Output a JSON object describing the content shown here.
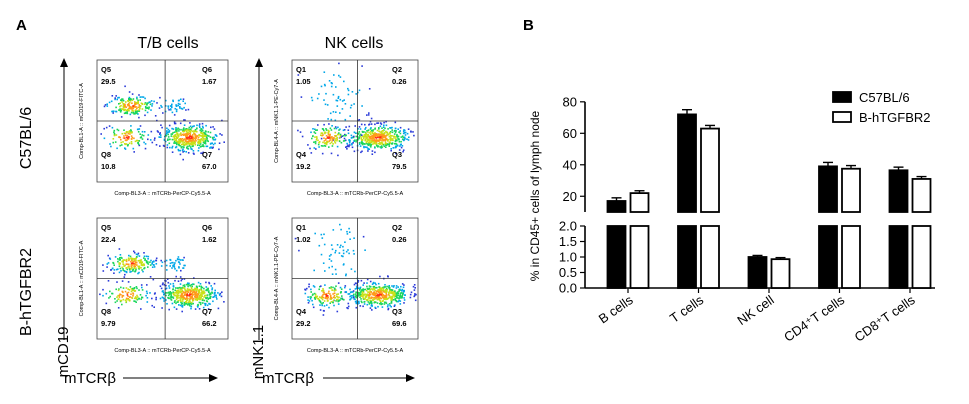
{
  "panel_a": {
    "letter": "A",
    "col_titles": [
      "T/B cells",
      "NK cells"
    ],
    "row_labels": [
      "C57BL/6",
      "B-hTGFBR2"
    ],
    "y_markers": [
      "mCD19",
      "mNK1.1"
    ],
    "x_marker": "mTCRβ",
    "xaxis_label": "Comp-BL3-A :: mTCRb-PerCP-Cy5.5-A",
    "yaxis_labels": [
      "Comp-BL1-A :: mCD19-FITC-A",
      "Comp-BL4-A :: mNK1.1-PE-Cy7-A"
    ],
    "plots": [
      {
        "quadrants": [
          {
            "name": "Q5",
            "value": "29.5"
          },
          {
            "name": "Q6",
            "value": "1.67"
          },
          {
            "name": "Q8",
            "value": "10.8"
          },
          {
            "name": "Q7",
            "value": "67.0"
          }
        ]
      },
      {
        "quadrants": [
          {
            "name": "Q1",
            "value": "1.05"
          },
          {
            "name": "Q2",
            "value": "0.26"
          },
          {
            "name": "Q4",
            "value": "19.2"
          },
          {
            "name": "Q3",
            "value": "79.5"
          }
        ]
      },
      {
        "quadrants": [
          {
            "name": "Q5",
            "value": "22.4"
          },
          {
            "name": "Q6",
            "value": "1.62"
          },
          {
            "name": "Q8",
            "value": "9.79"
          },
          {
            "name": "Q7",
            "value": "66.2"
          }
        ]
      },
      {
        "quadrants": [
          {
            "name": "Q1",
            "value": "1.02"
          },
          {
            "name": "Q2",
            "value": "0.26"
          },
          {
            "name": "Q4",
            "value": "29.2"
          },
          {
            "name": "Q3",
            "value": "69.6"
          }
        ]
      }
    ]
  },
  "chart_data": {
    "type": "bar",
    "panel_label": "B",
    "categories": [
      "B cells",
      "T cells",
      "NK cell",
      "CD4⁺T cells",
      "CD8⁺T cells"
    ],
    "series": [
      {
        "name": "C57BL/6",
        "values": [
          17,
          72,
          1.0,
          39,
          36.5
        ],
        "errors": [
          2,
          3,
          0.05,
          2.5,
          2
        ],
        "fill": "#000000"
      },
      {
        "name": "B-hTGFBR2",
        "values": [
          22,
          63,
          0.93,
          37.5,
          31
        ],
        "errors": [
          1.5,
          2,
          0.05,
          2,
          1.5
        ],
        "fill": "#ffffff"
      }
    ],
    "ylabel": "% in CD45+ cells of lymph node",
    "y_axis_break": {
      "lower_range": [
        0,
        2.0
      ],
      "upper_range": [
        10,
        80
      ]
    },
    "lower_ticks": [
      "0.0",
      "0.5",
      "1.0",
      "1.5",
      "2.0"
    ],
    "upper_ticks": [
      "20",
      "40",
      "60",
      "80"
    ],
    "legend_position": "top-right"
  }
}
